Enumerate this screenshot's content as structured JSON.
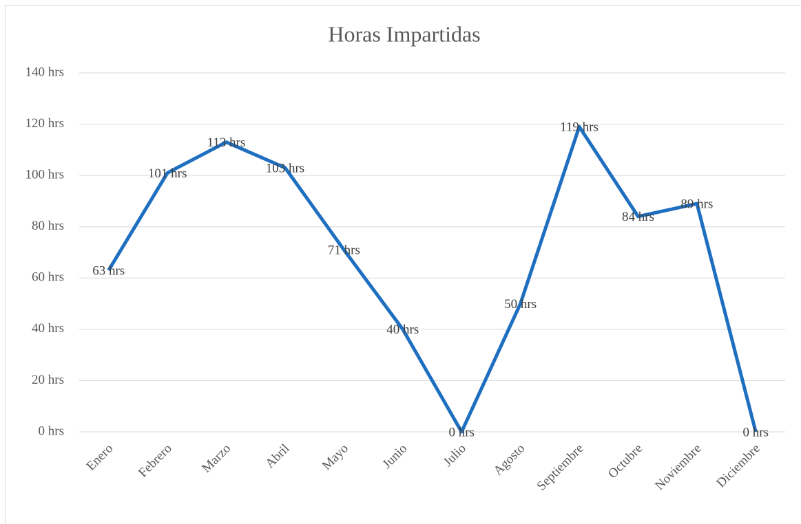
{
  "chart_data": {
    "type": "line",
    "title": "Horas Impartidas",
    "categories": [
      "Enero",
      "Febrero",
      "Marzo",
      "Abril",
      "Mayo",
      "Junio",
      "Julio",
      "Agosto",
      "Septiembre",
      "Octubre",
      "Noviembre",
      "Diciembre"
    ],
    "values": [
      63,
      101,
      113,
      103,
      71,
      40,
      0,
      50,
      119,
      84,
      89,
      0
    ],
    "value_labels": [
      "63 hrs",
      "101 hrs",
      "113 hrs",
      "103 hrs",
      "71 hrs",
      "40 hrs",
      "0 hrs",
      "50 hrs",
      "119 hrs",
      "84 hrs",
      "89 hrs",
      "0 hrs"
    ],
    "color": "#1f6fc0",
    "ylim": [
      0,
      140
    ],
    "yticks": [
      {
        "value": 0,
        "label": "0 hrs"
      },
      {
        "value": 20,
        "label": "20 hrs"
      },
      {
        "value": 40,
        "label": "40 hrs"
      },
      {
        "value": 60,
        "label": "60 hrs"
      },
      {
        "value": 80,
        "label": "80 hrs"
      },
      {
        "value": 100,
        "label": "100 hrs"
      },
      {
        "value": 120,
        "label": "120 hrs"
      },
      {
        "value": 140,
        "label": "140 hrs"
      }
    ],
    "grid": true
  }
}
